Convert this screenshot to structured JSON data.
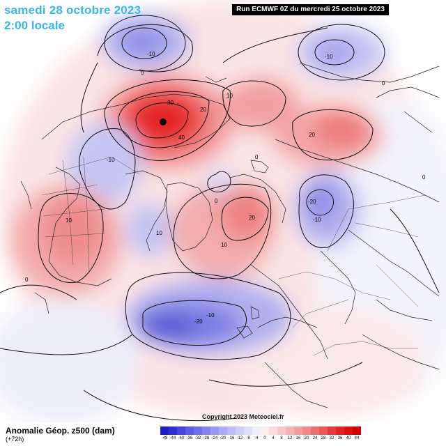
{
  "header": {
    "date": "samedi 28 octobre 2023",
    "time": "2:00 locale",
    "run": "Run ECMWF 0Z du mercredi 25 octobre 2023"
  },
  "footer": {
    "title": "Anomalie Géop. z500 (dam)",
    "lead": "(+72h)",
    "copyright": "Copyright 2023 Meteociel.fr"
  },
  "legend": {
    "values": [
      "-48",
      "-44",
      "-40",
      "-36",
      "-32",
      "-28",
      "-24",
      "-20",
      "-16",
      "-12",
      "-8",
      "-4",
      "0",
      "4",
      "8",
      "12",
      "16",
      "20",
      "24",
      "28",
      "32",
      "36",
      "40",
      "44"
    ],
    "colors": [
      "#2020c0",
      "#3030d0",
      "#4545dd",
      "#5a5ae4",
      "#6f6fe9",
      "#8484ee",
      "#9898f2",
      "#aaaaf5",
      "#bcbcf7",
      "#cdcdf9",
      "#dedefb",
      "#eeeefd",
      "#fdeeee",
      "#fbdcdc",
      "#f8c8c8",
      "#f5b3b3",
      "#f29e9e",
      "#ef8989",
      "#ec7070",
      "#e85656",
      "#e43c3c",
      "#e02222",
      "#dc1010",
      "#d00000"
    ]
  },
  "contour_labels": [
    {
      "id": "lbl-m10-top",
      "text": "-10"
    },
    {
      "id": "lbl-0-topleft",
      "text": "0"
    },
    {
      "id": "lbl-30",
      "text": "30"
    },
    {
      "id": "lbl-20-alaska",
      "text": "20"
    },
    {
      "id": "lbl-40",
      "text": "40"
    },
    {
      "id": "lbl-10-a",
      "text": "10"
    },
    {
      "id": "lbl-m10-tr",
      "text": "-10"
    },
    {
      "id": "lbl-0-tr",
      "text": "0"
    },
    {
      "id": "lbl-20-siberia",
      "text": "20"
    },
    {
      "id": "lbl-m10-canada",
      "text": "-10"
    },
    {
      "id": "lbl-0-c",
      "text": "0"
    },
    {
      "id": "lbl-0-d",
      "text": "0"
    },
    {
      "id": "lbl-m20-asia",
      "text": "-20"
    },
    {
      "id": "lbl-m10-asia",
      "text": "-10"
    },
    {
      "id": "lbl-20-green",
      "text": "20"
    },
    {
      "id": "lbl-10-green",
      "text": "10"
    },
    {
      "id": "lbl-10-usa",
      "text": "10"
    },
    {
      "id": "lbl-10-mid",
      "text": "10"
    },
    {
      "id": "lbl-0-left",
      "text": "0"
    },
    {
      "id": "lbl-m20-atl",
      "text": "-20"
    },
    {
      "id": "lbl-m10-atl",
      "text": "-10"
    },
    {
      "id": "lbl-0-right",
      "text": "0"
    }
  ]
}
